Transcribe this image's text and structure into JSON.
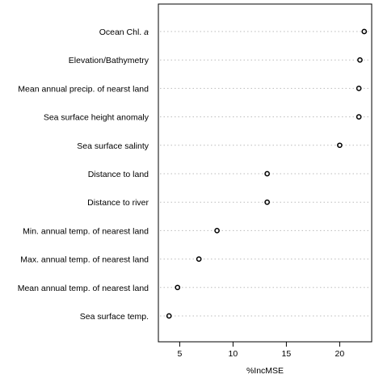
{
  "chart_data": {
    "type": "scatter",
    "xlabel": "%IncMSE",
    "xlim": [
      3,
      23
    ],
    "xticks": [
      5,
      10,
      15,
      20
    ],
    "grid": "dotted horizontal guide lines",
    "categories": [
      {
        "prefix": "Ocean Chl. ",
        "italic": "a"
      },
      {
        "prefix": "Elevation/Bathymetry",
        "italic": ""
      },
      {
        "prefix": "Mean annual precip. of nearst land",
        "italic": ""
      },
      {
        "prefix": "Sea surface height anomaly",
        "italic": ""
      },
      {
        "prefix": "Sea surface salinty",
        "italic": ""
      },
      {
        "prefix": "Distance to land",
        "italic": ""
      },
      {
        "prefix": "Distance to river",
        "italic": ""
      },
      {
        "prefix": "Min. annual temp. of nearest land",
        "italic": ""
      },
      {
        "prefix": "Max. annual temp. of nearest land",
        "italic": ""
      },
      {
        "prefix": "Mean annual temp. of nearest land",
        "italic": ""
      },
      {
        "prefix": "Sea surface temp.",
        "italic": ""
      }
    ],
    "values": [
      22.3,
      21.9,
      21.8,
      21.8,
      20.0,
      13.2,
      13.2,
      8.5,
      6.8,
      4.8,
      4.0
    ],
    "colors": {
      "marker": "#000000",
      "guide": "#bbbbbb",
      "frame": "#000000"
    }
  }
}
